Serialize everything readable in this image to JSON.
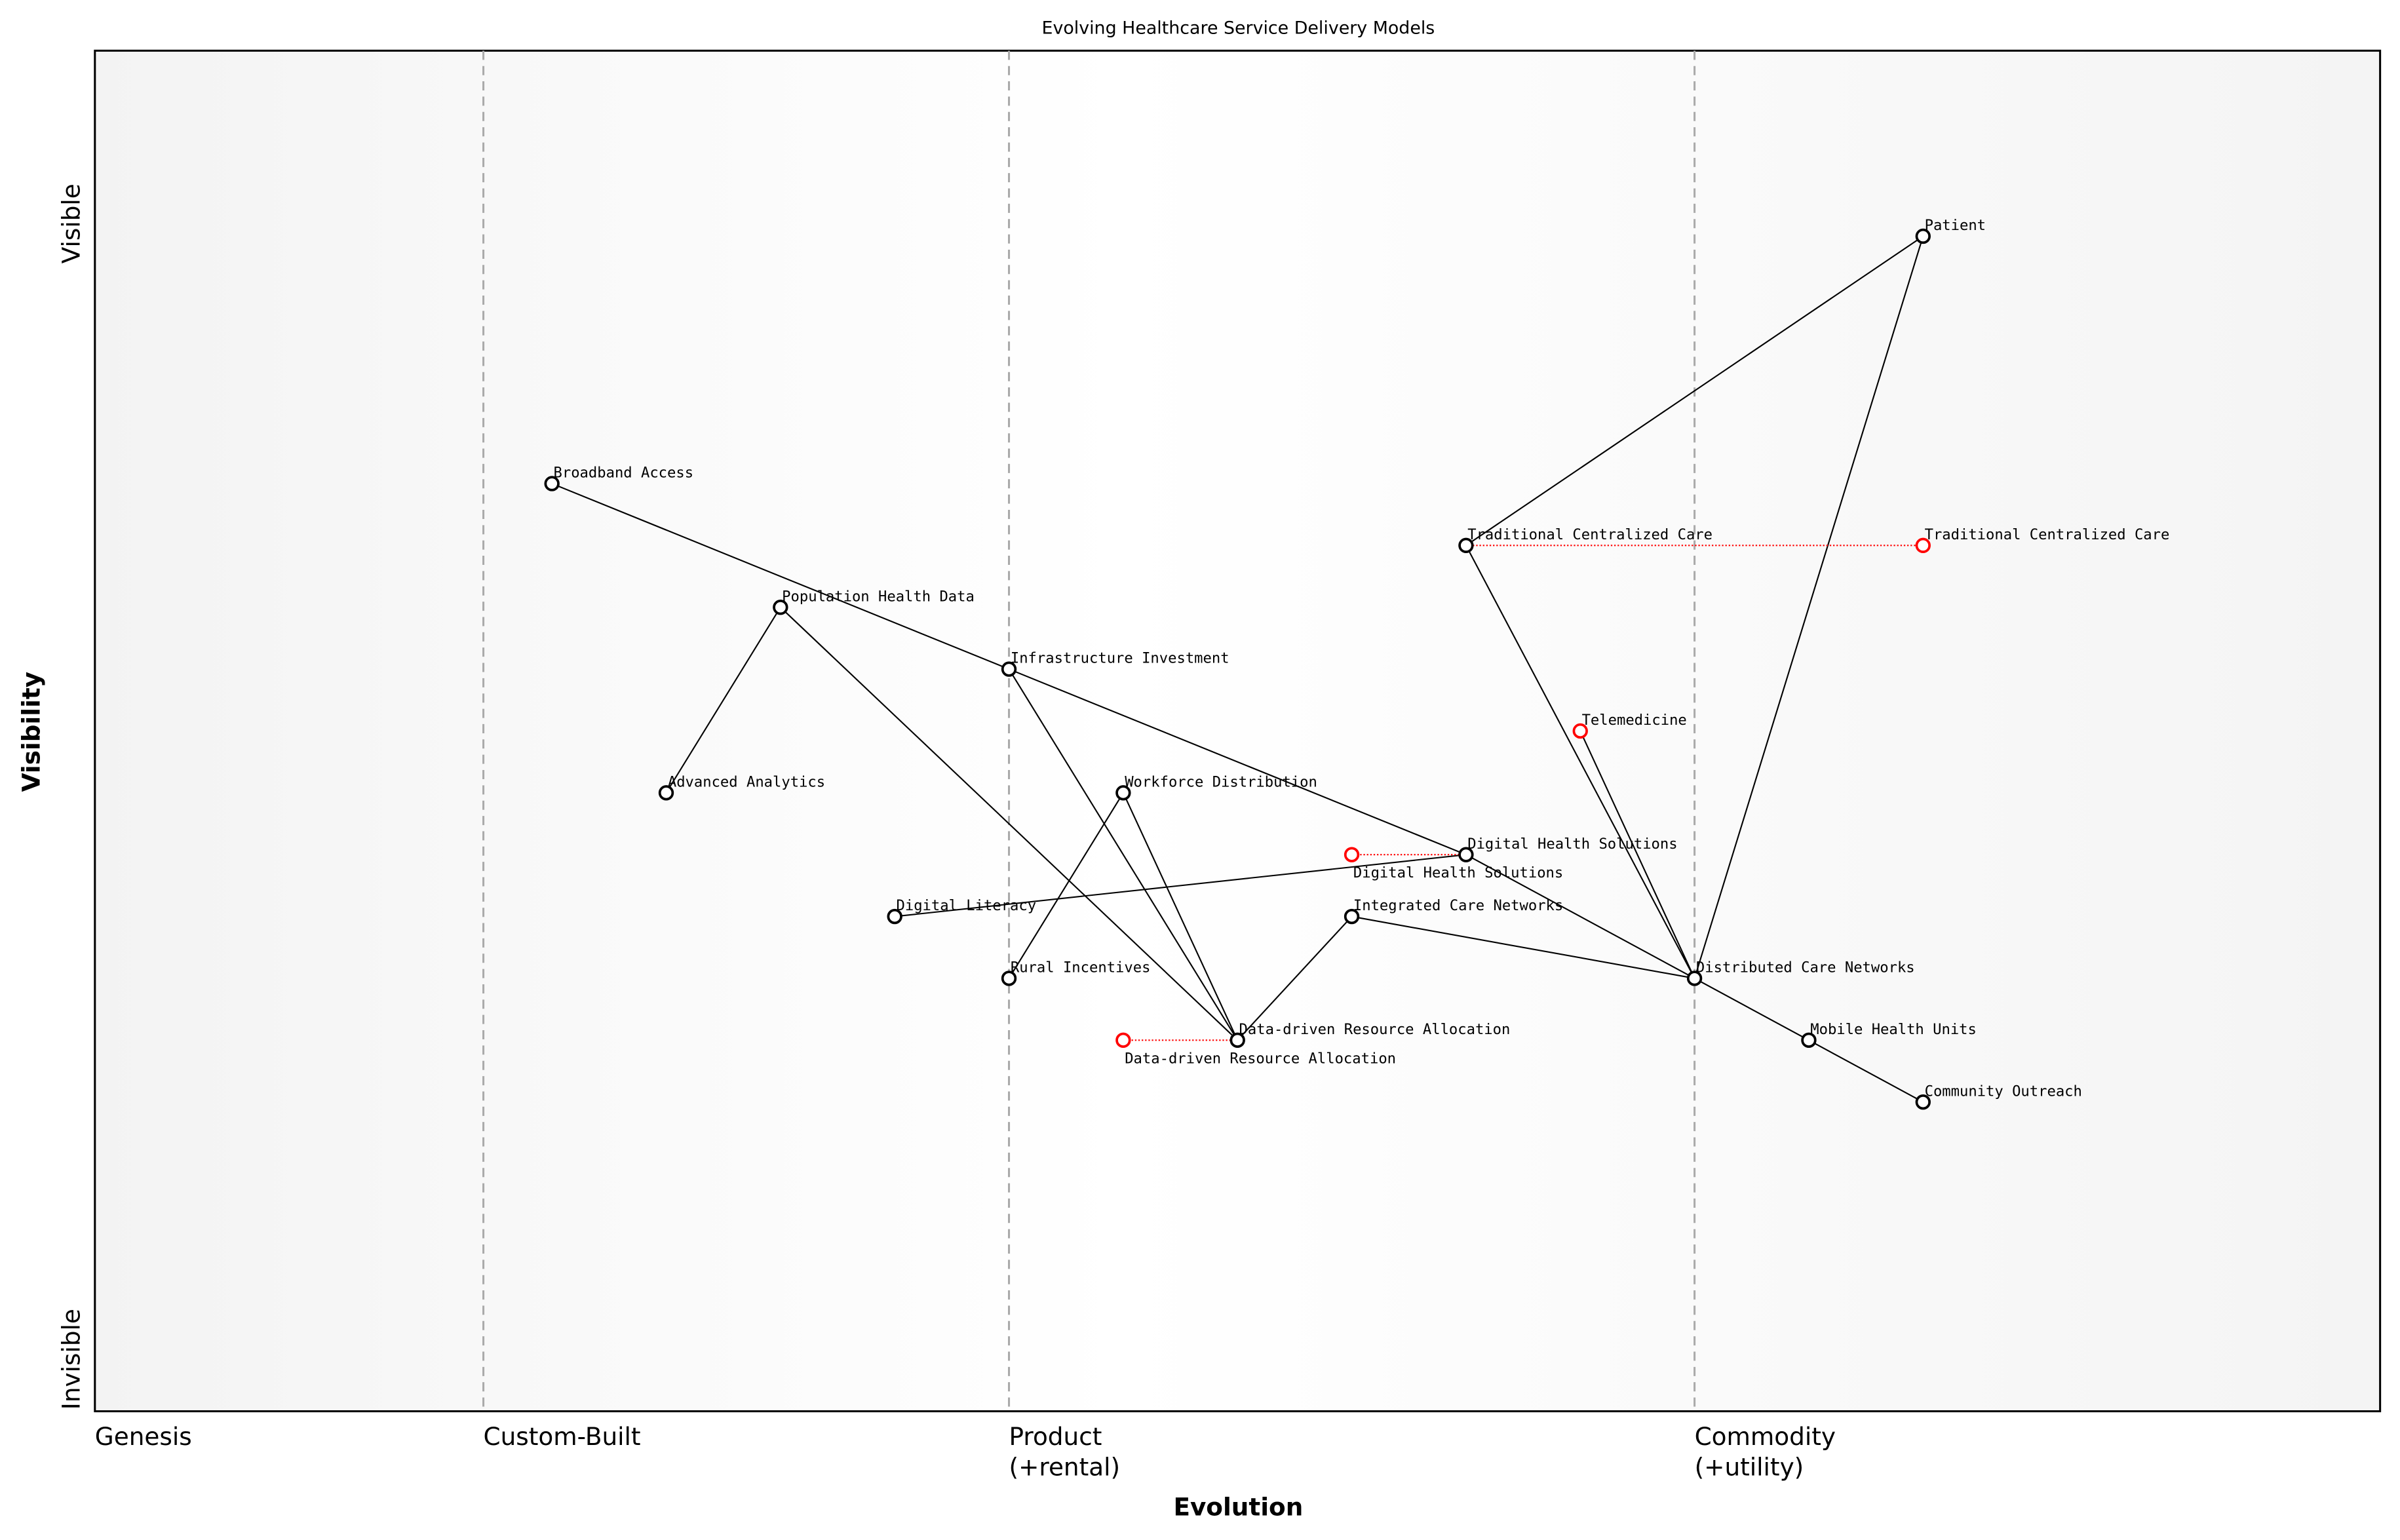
{
  "title": "Evolving Healthcare Service Delivery Models",
  "x_axis": {
    "label": "Evolution",
    "stages": [
      {
        "label_lines": [
          "Genesis"
        ],
        "at": 0.0
      },
      {
        "label_lines": [
          "Custom-Built"
        ],
        "at": 0.17
      },
      {
        "label_lines": [
          "Product",
          "(+rental)"
        ],
        "at": 0.4
      },
      {
        "label_lines": [
          "Commodity",
          "(+utility)"
        ],
        "at": 0.7
      }
    ],
    "range": [
      0,
      1
    ]
  },
  "y_axis": {
    "label": "Visibility",
    "top_label": "Visible",
    "bottom_label": "Invisible",
    "range": [
      0,
      1.1
    ]
  },
  "colors": {
    "node": "#000000",
    "evolved": "#ff0000",
    "divider": "#aaaaaa"
  },
  "nodes": [
    {
      "id": "patient",
      "label": "Patient",
      "evolution": 0.8,
      "visibility": 0.95
    },
    {
      "id": "broadband",
      "label": "Broadband Access",
      "evolution": 0.2,
      "visibility": 0.75
    },
    {
      "id": "tcc",
      "label": "Traditional Centralized Care",
      "evolution": 0.6,
      "visibility": 0.7
    },
    {
      "id": "phd",
      "label": "Population Health Data",
      "evolution": 0.3,
      "visibility": 0.65
    },
    {
      "id": "infra",
      "label": "Infrastructure Investment",
      "evolution": 0.4,
      "visibility": 0.6
    },
    {
      "id": "aa",
      "label": "Advanced Analytics",
      "evolution": 0.25,
      "visibility": 0.5
    },
    {
      "id": "wd",
      "label": "Workforce Distribution",
      "evolution": 0.45,
      "visibility": 0.5
    },
    {
      "id": "dhs",
      "label": "Digital Health Solutions",
      "evolution": 0.6,
      "visibility": 0.45
    },
    {
      "id": "dl",
      "label": "Digital Literacy",
      "evolution": 0.35,
      "visibility": 0.4
    },
    {
      "id": "icn",
      "label": "Integrated Care Networks",
      "evolution": 0.55,
      "visibility": 0.4
    },
    {
      "id": "ri",
      "label": "Rural Incentives",
      "evolution": 0.4,
      "visibility": 0.35
    },
    {
      "id": "dcn",
      "label": "Distributed Care Networks",
      "evolution": 0.7,
      "visibility": 0.35
    },
    {
      "id": "ddra",
      "label": "Data-driven Resource Allocation",
      "evolution": 0.5,
      "visibility": 0.3
    },
    {
      "id": "mhu",
      "label": "Mobile Health Units",
      "evolution": 0.75,
      "visibility": 0.3
    },
    {
      "id": "co",
      "label": "Community Outreach",
      "evolution": 0.8,
      "visibility": 0.25
    }
  ],
  "evolved_nodes": [
    {
      "id": "tcc_e",
      "from": "tcc",
      "label": "Traditional Centralized Care",
      "evolution": 0.8,
      "visibility": 0.7
    },
    {
      "id": "tele_e",
      "from": "",
      "label": "Telemedicine",
      "evolution": 0.65,
      "visibility": 0.55
    },
    {
      "id": "dhs_e",
      "from": "dhs",
      "label": "Digital Health Solutions",
      "evolution": 0.55,
      "visibility": 0.45
    },
    {
      "id": "ddra_e",
      "from": "ddra",
      "label": "Data-driven Resource Allocation",
      "evolution": 0.45,
      "visibility": 0.3
    }
  ],
  "links": [
    [
      "patient",
      "tcc"
    ],
    [
      "patient",
      "dcn"
    ],
    [
      "tcc",
      "dcn"
    ],
    [
      "tele_e",
      "dcn"
    ],
    [
      "broadband",
      "infra"
    ],
    [
      "infra",
      "dhs"
    ],
    [
      "dhs",
      "dcn"
    ],
    [
      "infra",
      "ddra"
    ],
    [
      "phd",
      "aa"
    ],
    [
      "phd",
      "ddra"
    ],
    [
      "wd",
      "ri"
    ],
    [
      "wd",
      "ddra"
    ],
    [
      "dl",
      "dhs"
    ],
    [
      "icn",
      "ddra"
    ],
    [
      "icn",
      "dcn"
    ],
    [
      "dcn",
      "mhu"
    ],
    [
      "mhu",
      "co"
    ]
  ]
}
